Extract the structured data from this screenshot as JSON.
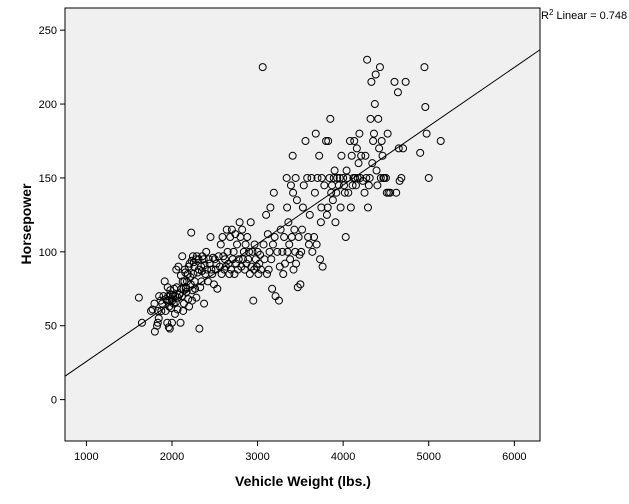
{
  "chart_data": {
    "type": "scatter",
    "title": "",
    "xlabel": "Vehicle Weight (lbs.)",
    "ylabel": "Horsepower",
    "xlim": [
      750,
      6300
    ],
    "ylim": [
      -28,
      265
    ],
    "xticks": [
      1000,
      2000,
      3000,
      4000,
      5000,
      6000
    ],
    "yticks": [
      0,
      50,
      100,
      150,
      200,
      250
    ],
    "grid": false,
    "fit_line": {
      "type": "linear",
      "r2_label_prefix": "R",
      "r2_label_sup": "2",
      "r2_label_rest": " Linear = 0.748",
      "slope": 0.0398,
      "intercept": -14
    },
    "colors": {
      "plot_background": "#f0f0f0",
      "marker_stroke": "#000000",
      "fit_line": "#000000"
    },
    "points": [
      [
        1613,
        69
      ],
      [
        1649,
        52
      ],
      [
        1755,
        60
      ],
      [
        1773,
        61
      ],
      [
        1795,
        65
      ],
      [
        1800,
        46
      ],
      [
        1825,
        50
      ],
      [
        1834,
        52
      ],
      [
        1835,
        60
      ],
      [
        1845,
        55
      ],
      [
        1850,
        70
      ],
      [
        1867,
        67
      ],
      [
        1875,
        60
      ],
      [
        1885,
        65
      ],
      [
        1900,
        70
      ],
      [
        1915,
        80
      ],
      [
        1925,
        60
      ],
      [
        1930,
        68
      ],
      [
        1940,
        67
      ],
      [
        1945,
        52
      ],
      [
        1950,
        76
      ],
      [
        1955,
        70
      ],
      [
        1963,
        49
      ],
      [
        1968,
        63
      ],
      [
        1970,
        67
      ],
      [
        1975,
        48
      ],
      [
        1980,
        74
      ],
      [
        1985,
        71
      ],
      [
        1990,
        62
      ],
      [
        1995,
        68
      ],
      [
        2000,
        52
      ],
      [
        2003,
        67
      ],
      [
        2010,
        71
      ],
      [
        2015,
        70
      ],
      [
        2020,
        65
      ],
      [
        2025,
        75
      ],
      [
        2035,
        58
      ],
      [
        2040,
        70
      ],
      [
        2045,
        66
      ],
      [
        2050,
        88
      ],
      [
        2055,
        76
      ],
      [
        2065,
        61
      ],
      [
        2070,
        69
      ],
      [
        2075,
        90
      ],
      [
        2085,
        71
      ],
      [
        2100,
        52
      ],
      [
        2105,
        84
      ],
      [
        2110,
        75
      ],
      [
        2115,
        70
      ],
      [
        2120,
        97
      ],
      [
        2125,
        80
      ],
      [
        2130,
        60
      ],
      [
        2135,
        75
      ],
      [
        2140,
        65
      ],
      [
        2145,
        80
      ],
      [
        2150,
        88
      ],
      [
        2155,
        86
      ],
      [
        2160,
        75
      ],
      [
        2165,
        76
      ],
      [
        2170,
        73
      ],
      [
        2175,
        80
      ],
      [
        2185,
        85
      ],
      [
        2190,
        68
      ],
      [
        2195,
        90
      ],
      [
        2200,
        63
      ],
      [
        2205,
        92
      ],
      [
        2215,
        83
      ],
      [
        2220,
        78
      ],
      [
        2225,
        113
      ],
      [
        2230,
        94
      ],
      [
        2235,
        67
      ],
      [
        2240,
        74
      ],
      [
        2245,
        97
      ],
      [
        2250,
        85
      ],
      [
        2255,
        93
      ],
      [
        2260,
        90
      ],
      [
        2265,
        80
      ],
      [
        2270,
        75
      ],
      [
        2280,
        95
      ],
      [
        2285,
        69
      ],
      [
        2290,
        97
      ],
      [
        2300,
        86
      ],
      [
        2310,
        95
      ],
      [
        2315,
        88
      ],
      [
        2320,
        48
      ],
      [
        2330,
        76
      ],
      [
        2340,
        90
      ],
      [
        2345,
        80
      ],
      [
        2350,
        87
      ],
      [
        2355,
        97
      ],
      [
        2370,
        95
      ],
      [
        2375,
        65
      ],
      [
        2380,
        91
      ],
      [
        2390,
        85
      ],
      [
        2400,
        100
      ],
      [
        2410,
        88
      ],
      [
        2420,
        80
      ],
      [
        2430,
        95
      ],
      [
        2440,
        92
      ],
      [
        2450,
        110
      ],
      [
        2460,
        88
      ],
      [
        2470,
        85
      ],
      [
        2480,
        96
      ],
      [
        2490,
        78
      ],
      [
        2500,
        95
      ],
      [
        2510,
        88
      ],
      [
        2520,
        92
      ],
      [
        2530,
        75
      ],
      [
        2545,
        97
      ],
      [
        2560,
        90
      ],
      [
        2570,
        105
      ],
      [
        2580,
        85
      ],
      [
        2590,
        110
      ],
      [
        2600,
        97
      ],
      [
        2610,
        88
      ],
      [
        2620,
        95
      ],
      [
        2630,
        90
      ],
      [
        2640,
        115
      ],
      [
        2650,
        100
      ],
      [
        2660,
        92
      ],
      [
        2670,
        85
      ],
      [
        2680,
        110
      ],
      [
        2690,
        88
      ],
      [
        2700,
        115
      ],
      [
        2710,
        95
      ],
      [
        2720,
        100
      ],
      [
        2730,
        85
      ],
      [
        2740,
        112
      ],
      [
        2750,
        92
      ],
      [
        2760,
        105
      ],
      [
        2770,
        88
      ],
      [
        2780,
        95
      ],
      [
        2790,
        120
      ],
      [
        2800,
        110
      ],
      [
        2810,
        90
      ],
      [
        2820,
        115
      ],
      [
        2830,
        95
      ],
      [
        2840,
        100
      ],
      [
        2850,
        88
      ],
      [
        2860,
        105
      ],
      [
        2870,
        92
      ],
      [
        2880,
        110
      ],
      [
        2890,
        95
      ],
      [
        2900,
        100
      ],
      [
        2910,
        85
      ],
      [
        2920,
        120
      ],
      [
        2930,
        90
      ],
      [
        2940,
        100
      ],
      [
        2950,
        67
      ],
      [
        2960,
        88
      ],
      [
        2965,
        105
      ],
      [
        2980,
        95
      ],
      [
        2990,
        90
      ],
      [
        3000,
        100
      ],
      [
        3010,
        85
      ],
      [
        3020,
        92
      ],
      [
        3030,
        98
      ],
      [
        3040,
        88
      ],
      [
        3060,
        225
      ],
      [
        3070,
        105
      ],
      [
        3080,
        95
      ],
      [
        3100,
        125
      ],
      [
        3110,
        85
      ],
      [
        3120,
        112
      ],
      [
        3130,
        88
      ],
      [
        3140,
        100
      ],
      [
        3150,
        130
      ],
      [
        3160,
        95
      ],
      [
        3170,
        75
      ],
      [
        3180,
        105
      ],
      [
        3190,
        140
      ],
      [
        3200,
        110
      ],
      [
        3210,
        70
      ],
      [
        3230,
        100
      ],
      [
        3250,
        67
      ],
      [
        3260,
        90
      ],
      [
        3270,
        115
      ],
      [
        3290,
        100
      ],
      [
        3300,
        85
      ],
      [
        3310,
        110
      ],
      [
        3320,
        92
      ],
      [
        3340,
        150
      ],
      [
        3345,
        130
      ],
      [
        3350,
        100
      ],
      [
        3360,
        120
      ],
      [
        3370,
        105
      ],
      [
        3380,
        95
      ],
      [
        3390,
        145
      ],
      [
        3400,
        110
      ],
      [
        3410,
        165
      ],
      [
        3415,
        140
      ],
      [
        3420,
        88
      ],
      [
        3430,
        115
      ],
      [
        3440,
        100
      ],
      [
        3445,
        150
      ],
      [
        3450,
        92
      ],
      [
        3460,
        135
      ],
      [
        3470,
        76
      ],
      [
        3480,
        110
      ],
      [
        3490,
        98
      ],
      [
        3500,
        78
      ],
      [
        3510,
        100
      ],
      [
        3520,
        115
      ],
      [
        3530,
        130
      ],
      [
        3540,
        145
      ],
      [
        3560,
        175
      ],
      [
        3580,
        150
      ],
      [
        3590,
        110
      ],
      [
        3600,
        105
      ],
      [
        3610,
        125
      ],
      [
        3630,
        150
      ],
      [
        3640,
        100
      ],
      [
        3660,
        110
      ],
      [
        3670,
        140
      ],
      [
        3680,
        180
      ],
      [
        3690,
        105
      ],
      [
        3700,
        150
      ],
      [
        3720,
        165
      ],
      [
        3730,
        95
      ],
      [
        3740,
        120
      ],
      [
        3745,
        130
      ],
      [
        3750,
        150
      ],
      [
        3760,
        90
      ],
      [
        3780,
        145
      ],
      [
        3800,
        175
      ],
      [
        3810,
        125
      ],
      [
        3820,
        130
      ],
      [
        3825,
        175
      ],
      [
        3840,
        150
      ],
      [
        3850,
        190
      ],
      [
        3860,
        140
      ],
      [
        3870,
        145
      ],
      [
        3880,
        135
      ],
      [
        3890,
        150
      ],
      [
        3900,
        155
      ],
      [
        3910,
        120
      ],
      [
        3920,
        140
      ],
      [
        3930,
        150
      ],
      [
        3950,
        145
      ],
      [
        3960,
        150
      ],
      [
        3970,
        130
      ],
      [
        3980,
        165
      ],
      [
        4000,
        150
      ],
      [
        4010,
        145
      ],
      [
        4020,
        140
      ],
      [
        4030,
        110
      ],
      [
        4040,
        155
      ],
      [
        4050,
        150
      ],
      [
        4060,
        140
      ],
      [
        4080,
        175
      ],
      [
        4090,
        130
      ],
      [
        4100,
        165
      ],
      [
        4110,
        145
      ],
      [
        4120,
        150
      ],
      [
        4130,
        175
      ],
      [
        4140,
        150
      ],
      [
        4150,
        145
      ],
      [
        4160,
        170
      ],
      [
        4170,
        150
      ],
      [
        4180,
        160
      ],
      [
        4190,
        180
      ],
      [
        4200,
        150
      ],
      [
        4210,
        165
      ],
      [
        4230,
        148
      ],
      [
        4250,
        140
      ],
      [
        4260,
        165
      ],
      [
        4270,
        150
      ],
      [
        4280,
        230
      ],
      [
        4290,
        130
      ],
      [
        4300,
        145
      ],
      [
        4310,
        150
      ],
      [
        4320,
        190
      ],
      [
        4330,
        215
      ],
      [
        4340,
        160
      ],
      [
        4350,
        175
      ],
      [
        4360,
        180
      ],
      [
        4370,
        200
      ],
      [
        4380,
        220
      ],
      [
        4390,
        155
      ],
      [
        4400,
        145
      ],
      [
        4410,
        190
      ],
      [
        4420,
        170
      ],
      [
        4430,
        225
      ],
      [
        4440,
        150
      ],
      [
        4450,
        175
      ],
      [
        4460,
        165
      ],
      [
        4470,
        150
      ],
      [
        4480,
        150
      ],
      [
        4500,
        150
      ],
      [
        4510,
        140
      ],
      [
        4520,
        180
      ],
      [
        4530,
        140
      ],
      [
        4550,
        140
      ],
      [
        4600,
        215
      ],
      [
        4620,
        140
      ],
      [
        4640,
        208
      ],
      [
        4650,
        170
      ],
      [
        4660,
        148
      ],
      [
        4680,
        150
      ],
      [
        4700,
        170
      ],
      [
        4730,
        215
      ],
      [
        4900,
        167
      ],
      [
        4950,
        225
      ],
      [
        4960,
        198
      ],
      [
        4975,
        180
      ],
      [
        5000,
        150
      ],
      [
        5140,
        175
      ]
    ]
  }
}
